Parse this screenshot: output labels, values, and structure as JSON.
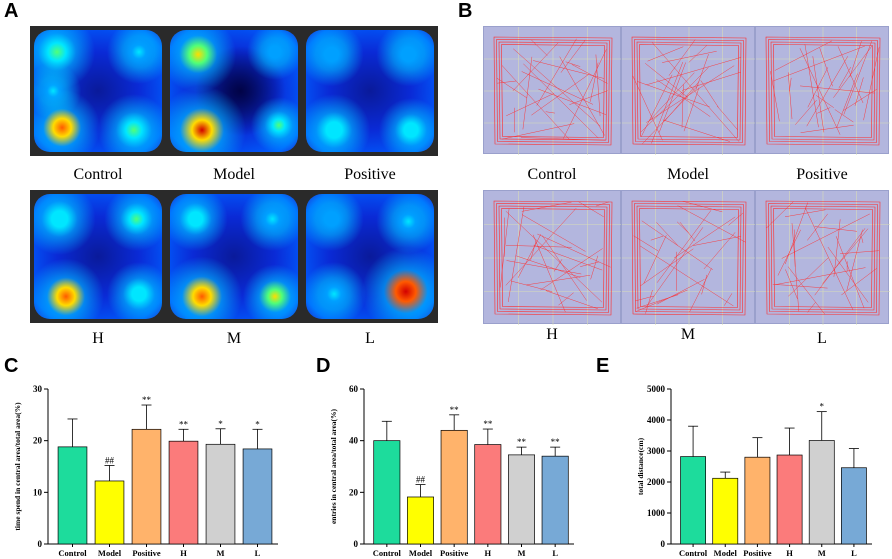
{
  "panels": {
    "a": "A",
    "b": "B",
    "c": "C",
    "d": "D",
    "e": "E"
  },
  "heatmaps": {
    "row1": [
      "Control",
      "Model",
      "Positive"
    ],
    "row2": [
      "H",
      "M",
      "L"
    ]
  },
  "tracks": {
    "row1": [
      "Control",
      "Model",
      "Positive"
    ],
    "row2": [
      "H",
      "M",
      "L"
    ]
  },
  "colors": {
    "bars": [
      "#1ddc9c",
      "#ffff00",
      "#ffb36b",
      "#fb7b7b",
      "#d0d0d0",
      "#77a9d6"
    ],
    "heat_bg": "#0a2ad6",
    "track_bg": "#b3b6de",
    "track_line": "#ff2a2a"
  },
  "chart_data": [
    {
      "type": "bar",
      "ylabel": "time spend in central area/total area(%)",
      "categories": [
        "Control",
        "Model",
        "Positive",
        "H",
        "M",
        "L"
      ],
      "values": [
        18.8,
        12.2,
        22.2,
        19.9,
        19.3,
        18.4
      ],
      "errors": [
        5.4,
        3.0,
        4.7,
        2.3,
        3.0,
        3.8
      ],
      "annotations": [
        "",
        "##",
        "**",
        "**",
        "*",
        "*"
      ],
      "ylim": [
        0,
        30
      ],
      "yticks": [
        "0",
        "10",
        "20",
        "30"
      ]
    },
    {
      "type": "bar",
      "ylabel": "entries in central area/total area(%)",
      "categories": [
        "Control",
        "Model",
        "Positive",
        "H",
        "M",
        "L"
      ],
      "values": [
        40.0,
        18.2,
        44.0,
        38.5,
        34.5,
        34.0
      ],
      "errors": [
        7.5,
        4.8,
        6.0,
        6.0,
        3.0,
        3.5
      ],
      "annotations": [
        "",
        "##",
        "**",
        "**",
        "**",
        "**"
      ],
      "ylim": [
        0,
        60
      ],
      "yticks": [
        "0",
        "20",
        "40",
        "60"
      ]
    },
    {
      "type": "bar",
      "ylabel": "total distance(cm)",
      "categories": [
        "Control",
        "Model",
        "Positive",
        "H",
        "M",
        "L"
      ],
      "values": [
        2820,
        2120,
        2800,
        2870,
        3340,
        2460
      ],
      "errors": [
        980,
        200,
        630,
        870,
        930,
        620
      ],
      "annotations": [
        "",
        "",
        "",
        "",
        "*",
        ""
      ],
      "ylim": [
        0,
        5000
      ],
      "yticks": [
        "0",
        "1000",
        "2000",
        "3000",
        "4000",
        "5000"
      ]
    }
  ]
}
